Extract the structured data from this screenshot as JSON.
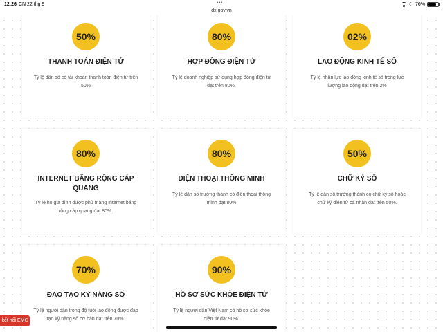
{
  "status_bar": {
    "time": "12:26",
    "date": "CN 22 thg 9",
    "dots": "•••",
    "url": "dx.gov.vn",
    "battery": "76%",
    "icons": [
      "wifi-icon",
      "moon-icon",
      "battery-icon"
    ]
  },
  "cards": [
    {
      "percent": "50%",
      "title": "THANH TOÁN ĐIỆN TỬ",
      "description": "Tỷ lệ dân số có tài khoản thanh toán điện tử trên 50%"
    },
    {
      "percent": "80%",
      "title": "HỢP ĐỒNG ĐIỆN TỬ",
      "description": "Tỷ lệ doanh nghiệp sử dụng hợp đồng điện tử đạt trên 80%."
    },
    {
      "percent": "02%",
      "title": "LAO ĐỘNG KINH TẾ SỐ",
      "description": "Tỷ lệ nhân lực lao động kinh tế số trong lực lượng lao động đạt trên 2%"
    },
    {
      "percent": "80%",
      "title": "INTERNET BĂNG RỘNG CÁP QUANG",
      "description": "Tỷ lệ hộ gia đình được phủ mạng Internet băng rộng cáp quang đạt 80%."
    },
    {
      "percent": "80%",
      "title": "ĐIỆN THOẠI THÔNG MINH",
      "description": "Tỷ lệ dân số trưởng thành có điện thoại thông minh đạt 80%"
    },
    {
      "percent": "50%",
      "title": "CHỮ KÝ SỐ",
      "description": "Tỷ lệ dân số trưởng thành có chữ ký số hoặc chữ ký điện tử cá nhân đạt trên 50%."
    },
    {
      "percent": "70%",
      "title": "ĐÀO TẠO KỸ NĂNG SỐ",
      "description": "Tỷ lệ người dân trong độ tuổi lao động được đào tạo kỹ năng số cơ bản đạt trên 70%."
    },
    {
      "percent": "90%",
      "title": "HỒ SƠ SỨC KHỎE ĐIỆN TỬ",
      "description": "Tỷ lệ người dân Việt Nam có hồ sơ sức khỏe điện tử đạt 90%."
    }
  ],
  "contact_button": {
    "label": "kết nối EMC"
  },
  "colors": {
    "accent": "#f2c01f",
    "contact": "#d9362b"
  }
}
